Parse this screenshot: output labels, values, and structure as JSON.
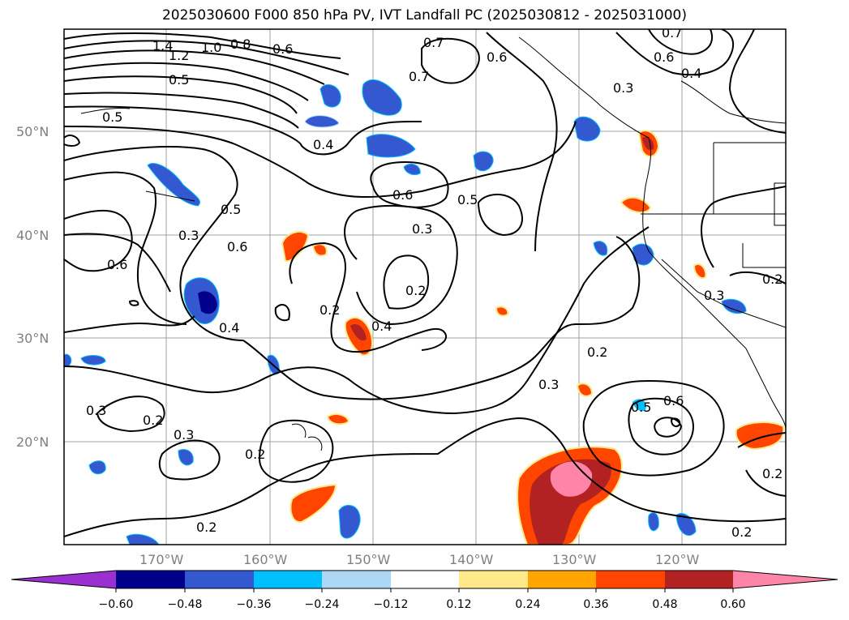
{
  "title": "2025030600 F000 850 hPa PV, IVT Landfall PC (2025030812 - 2025031000)",
  "lat_labels": [
    "50°N",
    "40°N",
    "30°N",
    "20°N"
  ],
  "lon_labels": [
    "170°W",
    "160°W",
    "150°W",
    "140°W",
    "130°W",
    "120°W"
  ],
  "contour_labels": [
    "1.4",
    "1.2",
    "1.0",
    "0.8",
    "0.6",
    "0.7",
    "0.7",
    "0.6",
    "0.5",
    "0.4",
    "0.5",
    "0.5",
    "0.6",
    "0.7",
    "0.3",
    "0.4",
    "0.6",
    "0.6",
    "0.5",
    "0.3",
    "0.3",
    "0.6",
    "0.2",
    "0.2",
    "0.4",
    "0.4",
    "0.2",
    "0.3",
    "0.3",
    "0.2",
    "0.3",
    "0.2",
    "0.2",
    "0.5",
    "0.6",
    "0.2",
    "0.2",
    "0.2",
    "0.3"
  ],
  "colorbar": {
    "ticks": [
      "−0.60",
      "−0.48",
      "−0.36",
      "−0.24",
      "−0.12",
      "0.12",
      "0.24",
      "0.36",
      "0.48",
      "0.60"
    ],
    "colors": [
      "#9b30d0",
      "#00008b",
      "#3358d0",
      "#00bfff",
      "#add8f5",
      "#ffffff",
      "#ffe98a",
      "#ffa500",
      "#ff4500",
      "#b22222",
      "#ff85a8"
    ]
  },
  "colors": {
    "grid": "#a0a0a0",
    "contour": "#000000",
    "coast": "#000000"
  }
}
